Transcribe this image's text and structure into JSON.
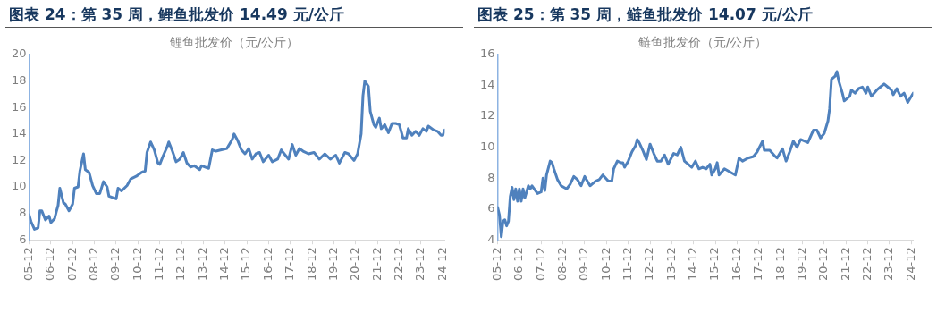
{
  "chart_data": [
    {
      "type": "line",
      "title": "图表 24：第 35 周，鲤鱼批发价 14.49 元/公斤",
      "subtitle": "鲤鱼批发价（元/公斤）",
      "grid": false,
      "legend": false,
      "marker": "none",
      "line_style": "solid",
      "xlim": [
        "2005-12",
        "2025-01"
      ],
      "ylim": [
        6,
        20
      ],
      "yticks": [
        6,
        8,
        10,
        12,
        14,
        16,
        18,
        20
      ],
      "xticks": [
        {
          "value": "2005-12",
          "label": "05-12"
        },
        {
          "value": "2006-12",
          "label": "06-12"
        },
        {
          "value": "2007-12",
          "label": "07-12"
        },
        {
          "value": "2008-12",
          "label": "08-12"
        },
        {
          "value": "2009-12",
          "label": "09-12"
        },
        {
          "value": "2010-12",
          "label": "10-12"
        },
        {
          "value": "2011-12",
          "label": "11-12"
        },
        {
          "value": "2012-12",
          "label": "12-12"
        },
        {
          "value": "2013-12",
          "label": "13-12"
        },
        {
          "value": "2014-12",
          "label": "14-12"
        },
        {
          "value": "2015-12",
          "label": "15-12"
        },
        {
          "value": "2016-12",
          "label": "16-12"
        },
        {
          "value": "2017-12",
          "label": "17-12"
        },
        {
          "value": "2018-12",
          "label": "18-12"
        },
        {
          "value": "2019-12",
          "label": "19-12"
        },
        {
          "value": "2020-12",
          "label": "20-12"
        },
        {
          "value": "2021-12",
          "label": "21-12"
        },
        {
          "value": "2022-12",
          "label": "22-12"
        },
        {
          "value": "2023-12",
          "label": "23-12"
        },
        {
          "value": "2024-12",
          "label": "24-12"
        }
      ],
      "series": [
        {
          "color": "#4f81bd",
          "x": [
            "2005-12",
            "2006-01",
            "2006-03",
            "2006-05",
            "2006-06",
            "2006-07",
            "2006-09",
            "2006-11",
            "2006-12",
            "2007-02",
            "2007-03",
            "2007-04",
            "2007-05",
            "2007-07",
            "2007-08",
            "2007-10",
            "2007-12",
            "2008-01",
            "2008-03",
            "2008-04",
            "2008-06",
            "2008-07",
            "2008-09",
            "2008-11",
            "2009-01",
            "2009-03",
            "2009-05",
            "2009-07",
            "2009-08",
            "2009-12",
            "2010-01",
            "2010-03",
            "2010-06",
            "2010-08",
            "2010-11",
            "2011-02",
            "2011-04",
            "2011-05",
            "2011-07",
            "2011-09",
            "2011-11",
            "2011-12",
            "2012-02",
            "2012-04",
            "2012-05",
            "2012-07",
            "2012-09",
            "2012-11",
            "2013-01",
            "2013-03",
            "2013-05",
            "2013-07",
            "2013-10",
            "2013-11",
            "2014-03",
            "2014-05",
            "2014-07",
            "2014-10",
            "2015-01",
            "2015-04",
            "2015-05",
            "2015-07",
            "2015-09",
            "2015-11",
            "2016-01",
            "2016-03",
            "2016-05",
            "2016-07",
            "2016-09",
            "2016-12",
            "2017-02",
            "2017-05",
            "2017-07",
            "2017-08",
            "2017-11",
            "2018-01",
            "2018-03",
            "2018-05",
            "2018-07",
            "2018-10",
            "2019-01",
            "2019-04",
            "2019-07",
            "2019-10",
            "2020-01",
            "2020-03",
            "2020-06",
            "2020-08",
            "2020-11",
            "2021-01",
            "2021-03",
            "2021-04",
            "2021-05",
            "2021-07",
            "2021-08",
            "2021-10",
            "2021-11",
            "2022-01",
            "2022-02",
            "2022-04",
            "2022-06",
            "2022-08",
            "2022-10",
            "2022-12",
            "2023-02",
            "2023-04",
            "2023-05",
            "2023-07",
            "2023-09",
            "2023-11",
            "2024-01",
            "2024-03",
            "2024-04",
            "2024-07",
            "2024-09",
            "2024-11",
            "2024-12",
            "2025-01"
          ],
          "values": [
            7.9,
            7.4,
            6.8,
            6.9,
            8.2,
            8.2,
            7.5,
            7.8,
            7.3,
            7.6,
            8.1,
            8.6,
            9.9,
            8.8,
            8.7,
            8.2,
            8.7,
            9.9,
            10.0,
            11.2,
            12.5,
            11.3,
            11.1,
            10.1,
            9.5,
            9.5,
            10.4,
            10.0,
            9.3,
            9.1,
            9.9,
            9.7,
            10.1,
            10.6,
            10.8,
            11.1,
            11.2,
            12.6,
            13.4,
            12.8,
            11.8,
            11.7,
            12.4,
            13.0,
            13.4,
            12.7,
            11.9,
            12.1,
            12.6,
            11.8,
            11.5,
            11.6,
            11.3,
            11.6,
            11.4,
            12.8,
            12.7,
            12.8,
            12.9,
            13.6,
            14.0,
            13.5,
            12.8,
            12.5,
            12.9,
            12.1,
            12.5,
            12.6,
            11.9,
            12.4,
            11.9,
            12.1,
            12.8,
            12.6,
            12.1,
            13.2,
            12.4,
            12.9,
            12.7,
            12.5,
            12.6,
            12.1,
            12.5,
            12.1,
            12.4,
            11.8,
            12.6,
            12.5,
            12.0,
            12.5,
            14.0,
            16.9,
            18.0,
            17.6,
            15.7,
            14.7,
            14.5,
            15.2,
            14.4,
            14.7,
            14.1,
            14.8,
            14.8,
            14.7,
            13.7,
            13.7,
            14.4,
            13.9,
            14.2,
            13.9,
            14.4,
            14.2,
            14.6,
            14.3,
            14.2,
            13.9,
            13.9,
            14.3
          ]
        }
      ]
    },
    {
      "type": "line",
      "title": "图表 25：第 35 周，鲢鱼批发价 14.07 元/公斤",
      "subtitle": "鲢鱼批发价（元/公斤）",
      "grid": false,
      "legend": false,
      "marker": "none",
      "line_style": "solid",
      "xlim": [
        "2005-12",
        "2025-01"
      ],
      "ylim": [
        4,
        16
      ],
      "yticks": [
        4,
        6,
        8,
        10,
        12,
        14,
        16
      ],
      "xticks": [
        {
          "value": "2005-12",
          "label": "05-12"
        },
        {
          "value": "2006-12",
          "label": "06-12"
        },
        {
          "value": "2007-12",
          "label": "07-12"
        },
        {
          "value": "2008-12",
          "label": "08-12"
        },
        {
          "value": "2009-12",
          "label": "09-12"
        },
        {
          "value": "2010-12",
          "label": "10-12"
        },
        {
          "value": "2011-12",
          "label": "11-12"
        },
        {
          "value": "2012-12",
          "label": "12-12"
        },
        {
          "value": "2013-12",
          "label": "13-12"
        },
        {
          "value": "2014-12",
          "label": "14-12"
        },
        {
          "value": "2015-12",
          "label": "15-12"
        },
        {
          "value": "2016-12",
          "label": "16-12"
        },
        {
          "value": "2017-12",
          "label": "17-12"
        },
        {
          "value": "2018-12",
          "label": "18-12"
        },
        {
          "value": "2019-12",
          "label": "19-12"
        },
        {
          "value": "2020-12",
          "label": "20-12"
        },
        {
          "value": "2021-12",
          "label": "21-12"
        },
        {
          "value": "2022-12",
          "label": "22-12"
        },
        {
          "value": "2023-12",
          "label": "23-12"
        },
        {
          "value": "2024-12",
          "label": "24-12"
        }
      ],
      "series": [
        {
          "color": "#4f81bd",
          "x": [
            "2005-12",
            "2006-01",
            "2006-02",
            "2006-03",
            "2006-04",
            "2006-05",
            "2006-06",
            "2006-07",
            "2006-08",
            "2006-09",
            "2006-10",
            "2006-11",
            "2006-12",
            "2007-01",
            "2007-02",
            "2007-03",
            "2007-05",
            "2007-06",
            "2007-07",
            "2007-10",
            "2007-12",
            "2008-01",
            "2008-02",
            "2008-03",
            "2008-05",
            "2008-06",
            "2008-07",
            "2008-09",
            "2008-11",
            "2009-02",
            "2009-04",
            "2009-06",
            "2009-08",
            "2009-10",
            "2009-12",
            "2010-03",
            "2010-06",
            "2010-08",
            "2010-10",
            "2011-01",
            "2011-03",
            "2011-04",
            "2011-06",
            "2011-08",
            "2011-09",
            "2011-10",
            "2011-12",
            "2012-02",
            "2012-04",
            "2012-05",
            "2012-06",
            "2012-08",
            "2012-10",
            "2012-12",
            "2013-02",
            "2013-04",
            "2013-06",
            "2013-08",
            "2013-10",
            "2014-01",
            "2014-03",
            "2014-05",
            "2014-07",
            "2014-09",
            "2014-11",
            "2015-01",
            "2015-03",
            "2015-05",
            "2015-07",
            "2015-09",
            "2015-10",
            "2015-12",
            "2016-01",
            "2016-02",
            "2016-05",
            "2016-08",
            "2016-11",
            "2017-01",
            "2017-03",
            "2017-06",
            "2017-09",
            "2017-11",
            "2018-02",
            "2018-03",
            "2018-06",
            "2018-09",
            "2018-10",
            "2019-01",
            "2019-03",
            "2019-05",
            "2019-07",
            "2019-09",
            "2019-11",
            "2020-01",
            "2020-03",
            "2020-06",
            "2020-08",
            "2020-10",
            "2020-12",
            "2021-02",
            "2021-03",
            "2021-04",
            "2021-06",
            "2021-07",
            "2021-08",
            "2021-10",
            "2021-11",
            "2022-02",
            "2022-03",
            "2022-05",
            "2022-07",
            "2022-09",
            "2022-11",
            "2022-12",
            "2023-02",
            "2023-05",
            "2023-07",
            "2023-09",
            "2023-11",
            "2024-01",
            "2024-02",
            "2024-04",
            "2024-06",
            "2024-08",
            "2024-10",
            "2024-11",
            "2025-01"
          ],
          "values": [
            6.1,
            5.6,
            4.2,
            5.2,
            5.3,
            4.9,
            5.2,
            6.8,
            7.4,
            6.6,
            7.3,
            6.5,
            7.3,
            6.5,
            7.3,
            6.7,
            7.5,
            7.3,
            7.5,
            7.0,
            7.1,
            8.0,
            7.2,
            8.2,
            9.1,
            9.0,
            8.6,
            7.9,
            7.5,
            7.3,
            7.6,
            8.1,
            7.9,
            7.5,
            8.1,
            7.5,
            7.8,
            7.9,
            8.2,
            7.8,
            7.8,
            8.6,
            9.1,
            9.0,
            9.0,
            8.7,
            9.1,
            9.7,
            10.1,
            10.5,
            10.3,
            9.8,
            9.2,
            10.2,
            9.6,
            9.1,
            9.1,
            9.5,
            8.9,
            9.6,
            9.5,
            10.0,
            9.1,
            8.9,
            8.7,
            9.1,
            8.6,
            8.7,
            8.6,
            8.9,
            8.2,
            8.6,
            9.0,
            8.2,
            8.6,
            8.4,
            8.2,
            9.3,
            9.1,
            9.3,
            9.4,
            9.7,
            10.4,
            9.8,
            9.8,
            9.4,
            9.3,
            9.9,
            9.1,
            9.7,
            10.4,
            10.0,
            10.5,
            10.4,
            10.3,
            11.1,
            11.1,
            10.6,
            10.9,
            11.7,
            12.5,
            14.4,
            14.6,
            14.9,
            14.3,
            13.5,
            13.0,
            13.3,
            13.7,
            13.5,
            13.8,
            13.9,
            13.5,
            13.9,
            13.3,
            13.7,
            13.9,
            14.1,
            13.9,
            13.7,
            13.4,
            13.8,
            13.3,
            13.5,
            12.9,
            13.1,
            13.5
          ]
        }
      ]
    }
  ]
}
